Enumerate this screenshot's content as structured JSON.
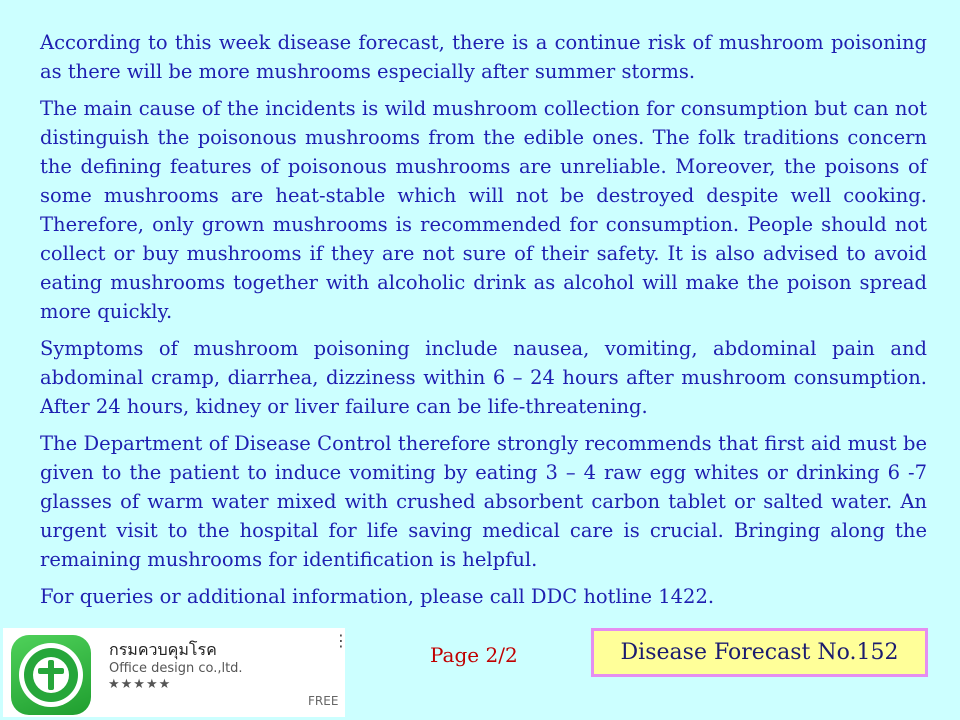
{
  "paragraphs": [
    "According to this week disease forecast, there is a continue risk of mushroom poisoning as there will be more mushrooms especially after summer storms.",
    "The main cause of the incidents is wild mushroom collection for consumption but can not distinguish the poisonous mushrooms from the edible ones. The folk traditions concern the defining features of poisonous mushrooms are unreliable. Moreover, the poisons of some mushrooms are heat-stable which will not be destroyed despite well cooking. Therefore, only grown mushrooms is recommended for consumption. People should not collect or buy mushrooms if they are not sure of their safety. It is also advised to avoid eating mushrooms together with alcoholic drink as alcohol will make the poison spread more quickly.",
    "Symptoms of mushroom poisoning include nausea, vomiting, abdominal pain and abdominal cramp, diarrhea, dizziness within 6 – 24 hours after mushroom consumption. After 24 hours, kidney or liver failure can be life-threatening.",
    "The Department of Disease Control therefore strongly recommends that first aid must be given to the patient to induce vomiting by eating 3 – 4 raw egg whites or drinking 6 -7 glasses of warm water mixed with crushed absorbent carbon tablet or salted water. An urgent visit to the hospital for life saving medical care is crucial. Bringing along the remaining mushrooms for identification is helpful.",
    "For queries or additional information, please call DDC hotline 1422."
  ],
  "app_card": {
    "name": "กรมควบคุมโรค",
    "developer": "Office design co.,ltd.",
    "stars": "★★★★★",
    "price": "FREE",
    "icon": "ddc-seal-icon",
    "menu_icon": "more-vert-icon"
  },
  "footer": {
    "page": "Page 2/2",
    "forecast_label": "Disease Forecast No.152"
  },
  "colors": {
    "background": "#ccffff",
    "body_text": "#1f1fb0",
    "page_number": "#c00000",
    "forecast_box_fill": "#ffff99",
    "forecast_box_border": "#e58ef0"
  }
}
